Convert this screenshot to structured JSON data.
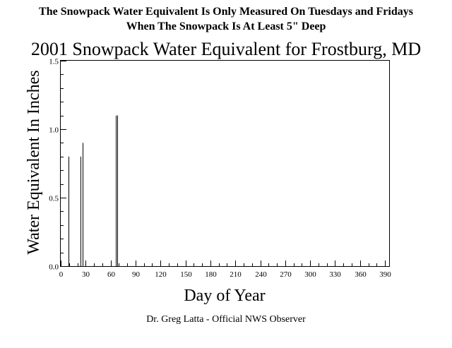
{
  "notes": [
    "The Snowpack Water Equivalent Is Only Measured On Tuesdays and Fridays",
    "When The Snowpack Is At Least 5\" Deep"
  ],
  "credit": "Dr. Greg Latta - Official NWS Observer",
  "chart_data": {
    "type": "bar",
    "title": "2001 Snowpack Water Equivalent for Frostburg, MD",
    "xlabel": "Day of Year",
    "ylabel": "Water Equivalent In Inches",
    "xlim": [
      0,
      395
    ],
    "ylim": [
      0,
      1.5
    ],
    "x_ticks": [
      0,
      30,
      60,
      90,
      120,
      150,
      180,
      210,
      240,
      270,
      300,
      330,
      360,
      390
    ],
    "y_ticks": [
      0.0,
      0.5,
      1.0,
      1.5
    ],
    "y_tick_labels": [
      "0.0",
      "0.5",
      "1.0",
      "1.5"
    ],
    "grid": false,
    "series": [
      {
        "x": [
          9,
          24,
          26,
          66,
          68
        ],
        "values": [
          0.8,
          0.8,
          0.9,
          1.1,
          1.1
        ]
      }
    ]
  }
}
